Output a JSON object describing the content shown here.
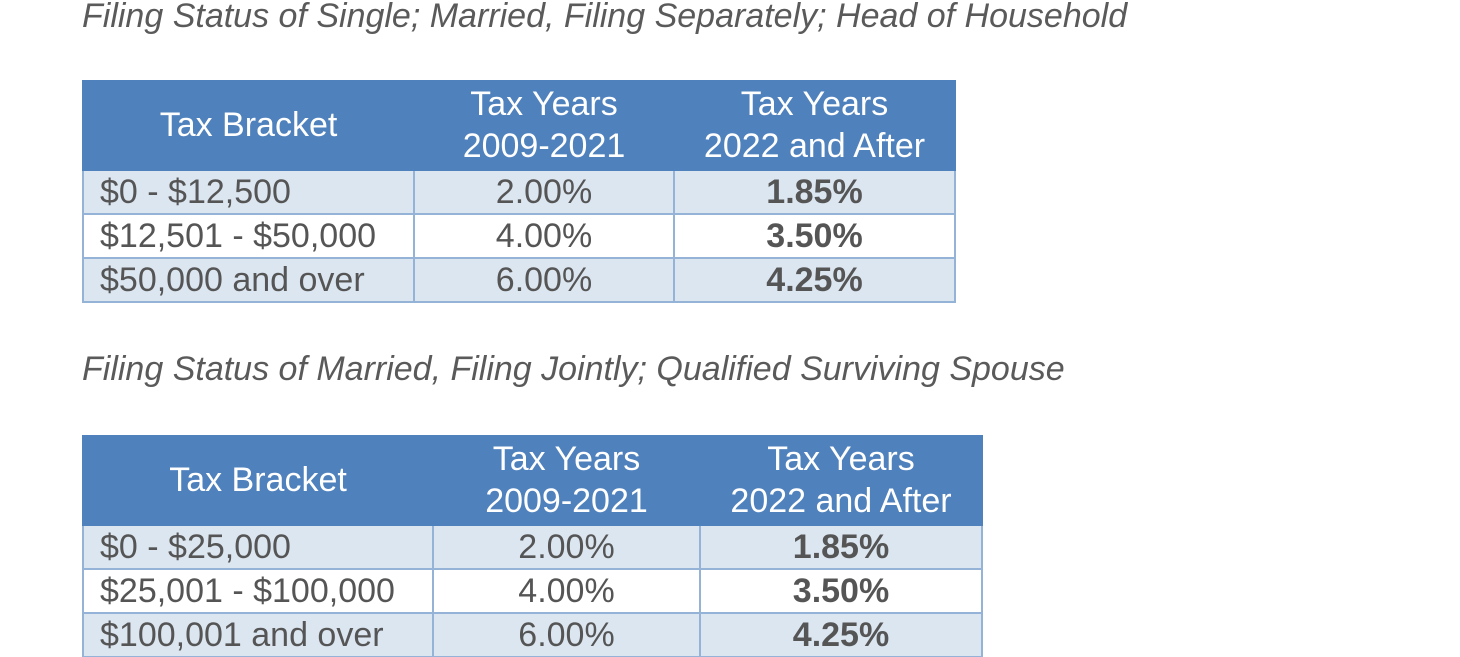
{
  "tables": [
    {
      "caption": "Filing Status of Single; Married, Filing Separately; Head of Household",
      "headers": {
        "bracket": "Tax Bracket",
        "old_line1": "Tax Years",
        "old_line2": "2009-2021",
        "new_line1": "Tax Years",
        "new_line2": "2022 and After"
      },
      "rows": [
        {
          "bracket": "$0 - $12,500",
          "rate_2009_2021": "2.00%",
          "rate_2022_after": "1.85%"
        },
        {
          "bracket": "$12,501 - $50,000",
          "rate_2009_2021": "4.00%",
          "rate_2022_after": "3.50%"
        },
        {
          "bracket": "$50,000 and over",
          "rate_2009_2021": "6.00%",
          "rate_2022_after": "4.25%"
        }
      ]
    },
    {
      "caption": "Filing Status of Married, Filing Jointly; Qualified Surviving Spouse",
      "headers": {
        "bracket": "Tax Bracket",
        "old_line1": "Tax Years",
        "old_line2": "2009-2021",
        "new_line1": "Tax Years",
        "new_line2": "2022 and After"
      },
      "rows": [
        {
          "bracket": "$0 - $25,000",
          "rate_2009_2021": "2.00%",
          "rate_2022_after": "1.85%"
        },
        {
          "bracket": "$25,001 - $100,000",
          "rate_2009_2021": "4.00%",
          "rate_2022_after": "3.50%"
        },
        {
          "bracket": "$100,001 and over",
          "rate_2009_2021": "6.00%",
          "rate_2022_after": "4.25%"
        }
      ]
    }
  ]
}
